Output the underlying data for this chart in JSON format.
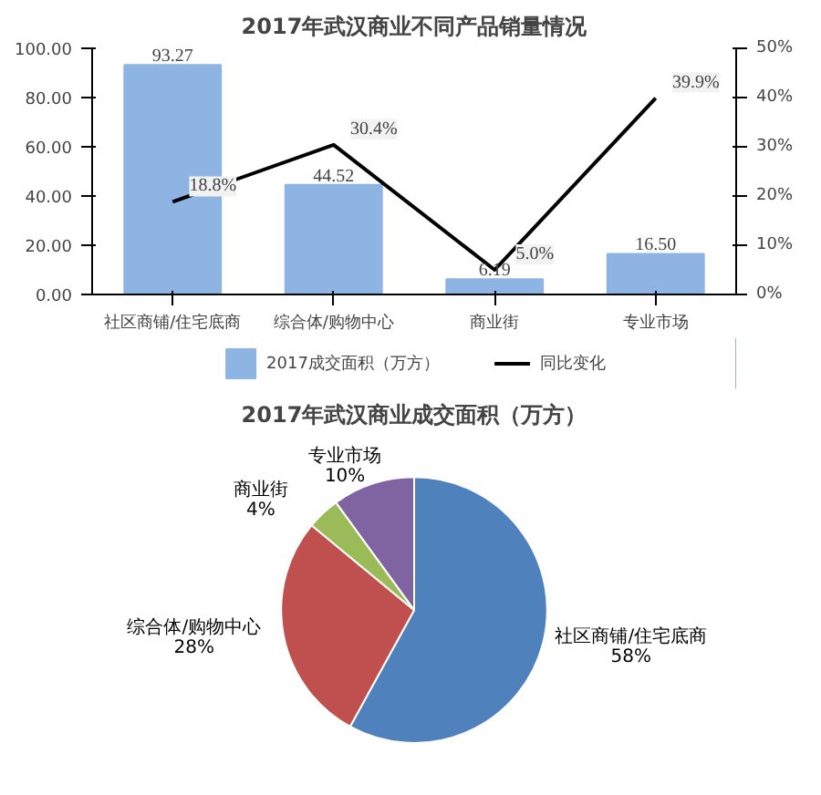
{
  "chart_data": [
    {
      "type": "bar",
      "title": "2017年武汉商业不同产品销量情况",
      "categories": [
        "社区商铺/住宅底商",
        "综合体/购物中心",
        "商业街",
        "专业市场"
      ],
      "series": [
        {
          "name": "2017成交面积（万方）",
          "color": "#8db4e2",
          "values": [
            93.27,
            44.52,
            6.19,
            16.5
          ],
          "value_labels": [
            "93.27",
            "44.52",
            "6.19",
            "16.50"
          ]
        },
        {
          "name": "同比变化",
          "type": "line",
          "axis": "y2",
          "color": "#000000",
          "values": [
            18.8,
            30.4,
            5.0,
            39.9
          ],
          "value_labels": [
            "18.8%",
            "30.4%",
            "5.0%",
            "39.9%"
          ]
        }
      ],
      "ylim": [
        0,
        100
      ],
      "yticks": [
        {
          "value": 0,
          "label": "0.00"
        },
        {
          "value": 20,
          "label": "20.00"
        },
        {
          "value": 40,
          "label": "40.00"
        },
        {
          "value": 60,
          "label": "60.00"
        },
        {
          "value": 80,
          "label": "80.00"
        },
        {
          "value": 100,
          "label": "100.00"
        }
      ],
      "y2lim": [
        0,
        50
      ],
      "y2ticks": [
        {
          "value": 0,
          "label": "0%"
        },
        {
          "value": 10,
          "label": "10%"
        },
        {
          "value": 20,
          "label": "20%"
        },
        {
          "value": 30,
          "label": "30%"
        },
        {
          "value": 40,
          "label": "40%"
        },
        {
          "value": 50,
          "label": "50%"
        }
      ],
      "legend": "bottom"
    },
    {
      "type": "pie",
      "title": "2017年武汉商业成交面积（万方）",
      "categories": [
        "社区商铺/住宅底商",
        "综合体/购物中心",
        "商业街",
        "专业市场"
      ],
      "values": [
        58,
        28,
        4,
        10
      ],
      "colors": [
        "#4f81bd",
        "#c0504d",
        "#9bbb59",
        "#8064a2"
      ],
      "value_labels": [
        "58%",
        "28%",
        "4%",
        "10%"
      ],
      "data_labels": true
    }
  ]
}
